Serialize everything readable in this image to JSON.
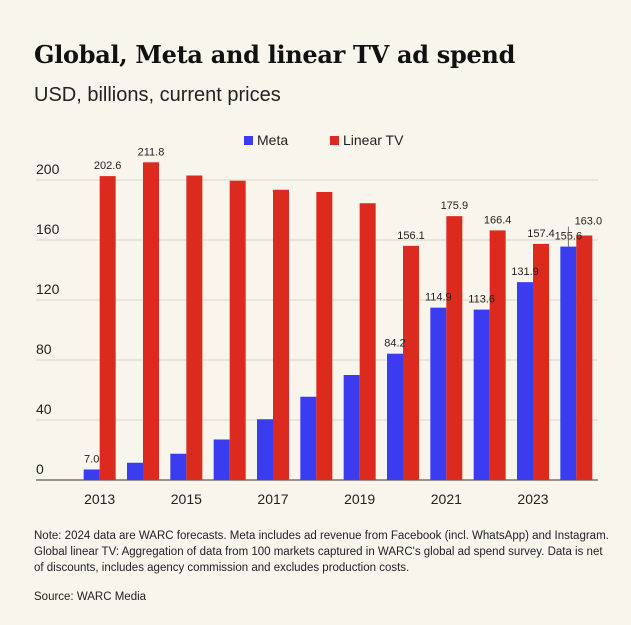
{
  "title": "Global, Meta and linear TV ad spend",
  "subtitle": "USD, billions, current prices",
  "note": "Note: 2024 data are WARC forecasts. Meta includes ad revenue from Facebook (incl. WhatsApp) and Instagram. Global linear TV: Aggregation of data from 100 markets captured in WARC's global ad spend survey. Data is net of discounts, includes agency commission and excludes production costs.",
  "source": "Source: WARC Media",
  "chart_data": {
    "type": "bar",
    "title": "Global, Meta and linear TV ad spend",
    "subtitle": "USD, billions, current prices",
    "x": [
      2013,
      2014,
      2015,
      2016,
      2017,
      2018,
      2019,
      2020,
      2021,
      2022,
      2023,
      2024
    ],
    "x_tick_labels": [
      "2013",
      "2015",
      "2017",
      "2019",
      "2021",
      "2023"
    ],
    "y_ticks": [
      0,
      40,
      80,
      120,
      160,
      200
    ],
    "ylim": [
      0,
      220
    ],
    "grid": true,
    "legend_position": "top",
    "series": [
      {
        "name": "Meta",
        "color": "#3b3cf0",
        "values": [
          7.0,
          11.5,
          17.5,
          27.0,
          40.5,
          55.5,
          70.0,
          84.2,
          114.9,
          113.6,
          131.9,
          155.6
        ],
        "labels": [
          "7.0",
          "",
          "",
          "",
          "",
          "",
          "",
          "84.2",
          "114.9",
          "113.6",
          "131.9",
          "155.6"
        ]
      },
      {
        "name": "Linear TV",
        "color": "#dc2a1e",
        "values": [
          202.6,
          211.8,
          203.0,
          199.5,
          193.5,
          192.0,
          184.5,
          156.1,
          175.9,
          166.4,
          157.4,
          163.0
        ],
        "labels": [
          "202.6",
          "211.8",
          "",
          "",
          "",
          "",
          "",
          "156.1",
          "175.9",
          "166.4",
          "157.4",
          "163.0"
        ]
      }
    ]
  }
}
